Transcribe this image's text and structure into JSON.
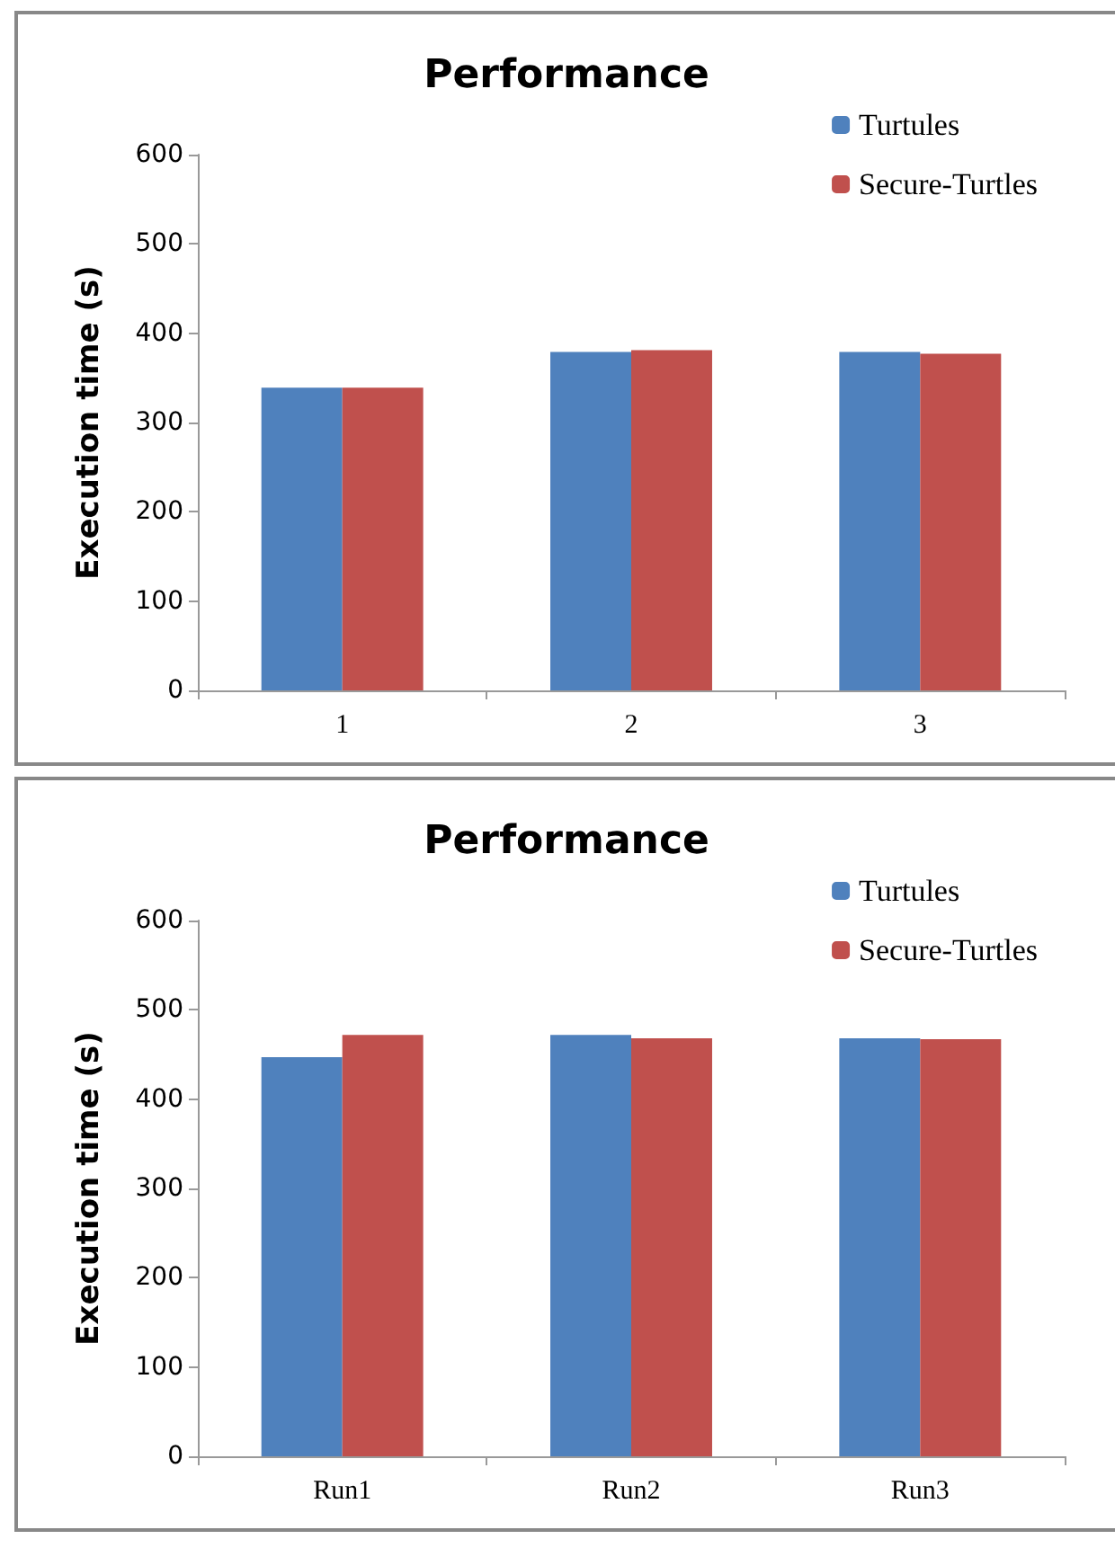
{
  "chart_data": [
    {
      "type": "bar",
      "title": "Performance",
      "ylabel": "Execution time (s)",
      "categories": [
        "1",
        "2",
        "3"
      ],
      "ylim": [
        0,
        600
      ],
      "yticks": [
        0,
        100,
        200,
        300,
        400,
        500,
        600
      ],
      "grid": false,
      "legend": "top right",
      "series": [
        {
          "name": "Turtules",
          "color": "#4f81bd",
          "values": [
            339,
            379,
            379
          ]
        },
        {
          "name": "Secure-Turtles",
          "color": "#c0504d",
          "values": [
            339,
            381,
            377
          ]
        }
      ]
    },
    {
      "type": "bar",
      "title": "Performance",
      "ylabel": "Execution time (s)",
      "categories": [
        "Run1",
        "Run2",
        "Run3"
      ],
      "ylim": [
        0,
        600
      ],
      "yticks": [
        0,
        100,
        200,
        300,
        400,
        500,
        600
      ],
      "grid": false,
      "legend": "top right",
      "series": [
        {
          "name": "Turtules",
          "color": "#4f81bd",
          "values": [
            447,
            472,
            468
          ]
        },
        {
          "name": "Secure-Turtles",
          "color": "#c0504d",
          "values": [
            472,
            468,
            467
          ]
        }
      ]
    }
  ]
}
